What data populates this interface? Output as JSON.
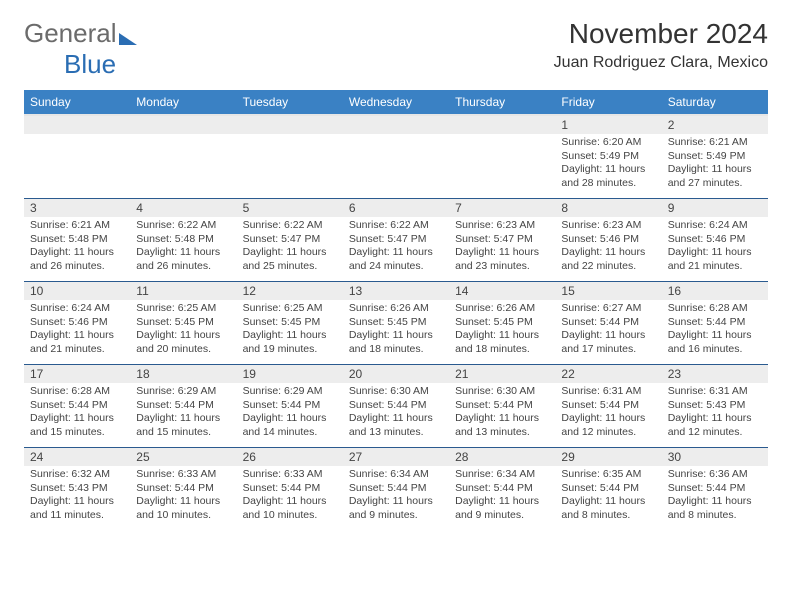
{
  "logo": {
    "text1": "General",
    "text2": "Blue",
    "text_color": "#6b6b6b",
    "accent_color": "#2a6db3"
  },
  "title": "November 2024",
  "location": "Juan Rodriguez Clara, Mexico",
  "header_bg": "#3a81c4",
  "row_divider": "#2a5a8f",
  "daynum_bg": "#ededed",
  "weekdays": [
    "Sunday",
    "Monday",
    "Tuesday",
    "Wednesday",
    "Thursday",
    "Friday",
    "Saturday"
  ],
  "weeks": [
    [
      null,
      null,
      null,
      null,
      null,
      {
        "n": "1",
        "sr": "Sunrise: 6:20 AM",
        "ss": "Sunset: 5:49 PM",
        "dl": "Daylight: 11 hours and 28 minutes."
      },
      {
        "n": "2",
        "sr": "Sunrise: 6:21 AM",
        "ss": "Sunset: 5:49 PM",
        "dl": "Daylight: 11 hours and 27 minutes."
      }
    ],
    [
      {
        "n": "3",
        "sr": "Sunrise: 6:21 AM",
        "ss": "Sunset: 5:48 PM",
        "dl": "Daylight: 11 hours and 26 minutes."
      },
      {
        "n": "4",
        "sr": "Sunrise: 6:22 AM",
        "ss": "Sunset: 5:48 PM",
        "dl": "Daylight: 11 hours and 26 minutes."
      },
      {
        "n": "5",
        "sr": "Sunrise: 6:22 AM",
        "ss": "Sunset: 5:47 PM",
        "dl": "Daylight: 11 hours and 25 minutes."
      },
      {
        "n": "6",
        "sr": "Sunrise: 6:22 AM",
        "ss": "Sunset: 5:47 PM",
        "dl": "Daylight: 11 hours and 24 minutes."
      },
      {
        "n": "7",
        "sr": "Sunrise: 6:23 AM",
        "ss": "Sunset: 5:47 PM",
        "dl": "Daylight: 11 hours and 23 minutes."
      },
      {
        "n": "8",
        "sr": "Sunrise: 6:23 AM",
        "ss": "Sunset: 5:46 PM",
        "dl": "Daylight: 11 hours and 22 minutes."
      },
      {
        "n": "9",
        "sr": "Sunrise: 6:24 AM",
        "ss": "Sunset: 5:46 PM",
        "dl": "Daylight: 11 hours and 21 minutes."
      }
    ],
    [
      {
        "n": "10",
        "sr": "Sunrise: 6:24 AM",
        "ss": "Sunset: 5:46 PM",
        "dl": "Daylight: 11 hours and 21 minutes."
      },
      {
        "n": "11",
        "sr": "Sunrise: 6:25 AM",
        "ss": "Sunset: 5:45 PM",
        "dl": "Daylight: 11 hours and 20 minutes."
      },
      {
        "n": "12",
        "sr": "Sunrise: 6:25 AM",
        "ss": "Sunset: 5:45 PM",
        "dl": "Daylight: 11 hours and 19 minutes."
      },
      {
        "n": "13",
        "sr": "Sunrise: 6:26 AM",
        "ss": "Sunset: 5:45 PM",
        "dl": "Daylight: 11 hours and 18 minutes."
      },
      {
        "n": "14",
        "sr": "Sunrise: 6:26 AM",
        "ss": "Sunset: 5:45 PM",
        "dl": "Daylight: 11 hours and 18 minutes."
      },
      {
        "n": "15",
        "sr": "Sunrise: 6:27 AM",
        "ss": "Sunset: 5:44 PM",
        "dl": "Daylight: 11 hours and 17 minutes."
      },
      {
        "n": "16",
        "sr": "Sunrise: 6:28 AM",
        "ss": "Sunset: 5:44 PM",
        "dl": "Daylight: 11 hours and 16 minutes."
      }
    ],
    [
      {
        "n": "17",
        "sr": "Sunrise: 6:28 AM",
        "ss": "Sunset: 5:44 PM",
        "dl": "Daylight: 11 hours and 15 minutes."
      },
      {
        "n": "18",
        "sr": "Sunrise: 6:29 AM",
        "ss": "Sunset: 5:44 PM",
        "dl": "Daylight: 11 hours and 15 minutes."
      },
      {
        "n": "19",
        "sr": "Sunrise: 6:29 AM",
        "ss": "Sunset: 5:44 PM",
        "dl": "Daylight: 11 hours and 14 minutes."
      },
      {
        "n": "20",
        "sr": "Sunrise: 6:30 AM",
        "ss": "Sunset: 5:44 PM",
        "dl": "Daylight: 11 hours and 13 minutes."
      },
      {
        "n": "21",
        "sr": "Sunrise: 6:30 AM",
        "ss": "Sunset: 5:44 PM",
        "dl": "Daylight: 11 hours and 13 minutes."
      },
      {
        "n": "22",
        "sr": "Sunrise: 6:31 AM",
        "ss": "Sunset: 5:44 PM",
        "dl": "Daylight: 11 hours and 12 minutes."
      },
      {
        "n": "23",
        "sr": "Sunrise: 6:31 AM",
        "ss": "Sunset: 5:43 PM",
        "dl": "Daylight: 11 hours and 12 minutes."
      }
    ],
    [
      {
        "n": "24",
        "sr": "Sunrise: 6:32 AM",
        "ss": "Sunset: 5:43 PM",
        "dl": "Daylight: 11 hours and 11 minutes."
      },
      {
        "n": "25",
        "sr": "Sunrise: 6:33 AM",
        "ss": "Sunset: 5:44 PM",
        "dl": "Daylight: 11 hours and 10 minutes."
      },
      {
        "n": "26",
        "sr": "Sunrise: 6:33 AM",
        "ss": "Sunset: 5:44 PM",
        "dl": "Daylight: 11 hours and 10 minutes."
      },
      {
        "n": "27",
        "sr": "Sunrise: 6:34 AM",
        "ss": "Sunset: 5:44 PM",
        "dl": "Daylight: 11 hours and 9 minutes."
      },
      {
        "n": "28",
        "sr": "Sunrise: 6:34 AM",
        "ss": "Sunset: 5:44 PM",
        "dl": "Daylight: 11 hours and 9 minutes."
      },
      {
        "n": "29",
        "sr": "Sunrise: 6:35 AM",
        "ss": "Sunset: 5:44 PM",
        "dl": "Daylight: 11 hours and 8 minutes."
      },
      {
        "n": "30",
        "sr": "Sunrise: 6:36 AM",
        "ss": "Sunset: 5:44 PM",
        "dl": "Daylight: 11 hours and 8 minutes."
      }
    ]
  ]
}
